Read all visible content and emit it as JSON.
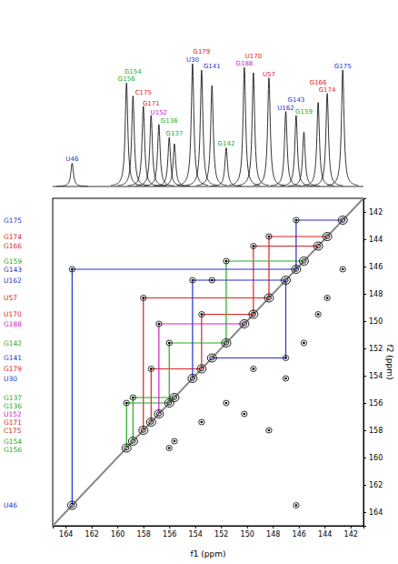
{
  "chart_data": {
    "type": "nmr_2d",
    "x_label": "f1 (ppm)",
    "y_label": "f2 (ppm)",
    "xlim": [
      165,
      141
    ],
    "ylim": [
      141,
      165
    ],
    "xticks": [
      164,
      162,
      160,
      158,
      156,
      154,
      152,
      150,
      148,
      146,
      144,
      142
    ],
    "yticks": [
      164,
      162,
      160,
      158,
      156,
      154,
      152,
      150,
      148,
      146,
      144,
      142
    ],
    "peaks": {
      "labels": [
        "U46",
        "G156",
        "G154",
        "C175",
        "G171",
        "U152",
        "G136",
        "G137",
        "U30",
        "G179",
        "G141",
        "G142",
        "G188",
        "U170",
        "U57",
        "U162",
        "G143",
        "G159",
        "G166",
        "G174",
        "G175"
      ],
      "ppm": [
        163.5,
        159.3,
        158.8,
        158.0,
        157.4,
        156.8,
        156.0,
        155.6,
        154.2,
        153.5,
        152.7,
        151.6,
        150.2,
        149.5,
        148.3,
        147.0,
        146.2,
        145.6,
        144.5,
        143.8,
        142.6
      ],
      "intensity": [
        18,
        80,
        70,
        62,
        55,
        48,
        38,
        33,
        95,
        90,
        78,
        30,
        92,
        88,
        84,
        58,
        55,
        42,
        65,
        72,
        90
      ],
      "colors": [
        "#2233cc",
        "#22aa22",
        "#22aa22",
        "#dd2222",
        "#dd2222",
        "#cc22cc",
        "#22aa22",
        "#22aa22",
        "#2233cc",
        "#dd2222",
        "#2233cc",
        "#22aa22",
        "#cc22cc",
        "#dd2222",
        "#dd2222",
        "#2233cc",
        "#2233cc",
        "#22aa22",
        "#dd2222",
        "#dd2222",
        "#2233cc"
      ]
    },
    "walks": [
      {
        "color": "#dd2222",
        "ppm": [
          157.4,
          153.5,
          149.5,
          144.5
        ]
      },
      {
        "color": "#dd2222",
        "ppm": [
          158.0,
          148.3,
          143.8
        ]
      },
      {
        "color": "#22aa22",
        "ppm": [
          159.3,
          156.0,
          151.6,
          145.6
        ]
      },
      {
        "color": "#22aa22",
        "ppm": [
          158.8,
          155.6
        ]
      },
      {
        "color": "#2233cc",
        "ppm": [
          163.5,
          146.2,
          142.6
        ]
      },
      {
        "color": "#2233cc",
        "ppm": [
          154.2,
          147.0,
          152.7
        ]
      },
      {
        "color": "#cc22cc",
        "ppm": [
          156.8,
          150.2
        ]
      }
    ]
  }
}
